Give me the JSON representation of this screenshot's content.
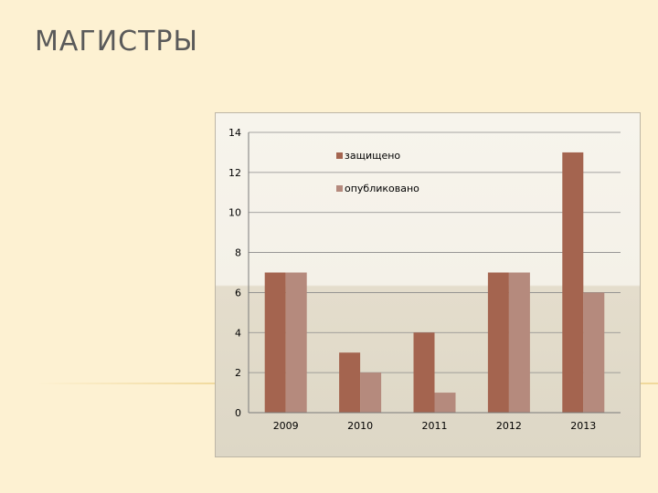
{
  "slide": {
    "title": "МАГИСТРЫ"
  },
  "colors": {
    "defended": "#a4644f",
    "published": "#b58a7d",
    "background": "#fdf1d2"
  },
  "chart_data": {
    "type": "bar",
    "categories": [
      "2009",
      "2010",
      "2011",
      "2012",
      "2013"
    ],
    "series": [
      {
        "name": "защищено",
        "values": [
          7,
          3,
          4,
          7,
          13
        ],
        "color": "#a4644f"
      },
      {
        "name": "опубликовано",
        "values": [
          7,
          2,
          1,
          7,
          6
        ],
        "color": "#b58a7d"
      }
    ],
    "ylim": [
      0,
      14
    ],
    "yticks": [
      "0",
      "2",
      "4",
      "6",
      "8",
      "10",
      "12",
      "14"
    ],
    "grid": true,
    "legend_position": "top-center"
  }
}
